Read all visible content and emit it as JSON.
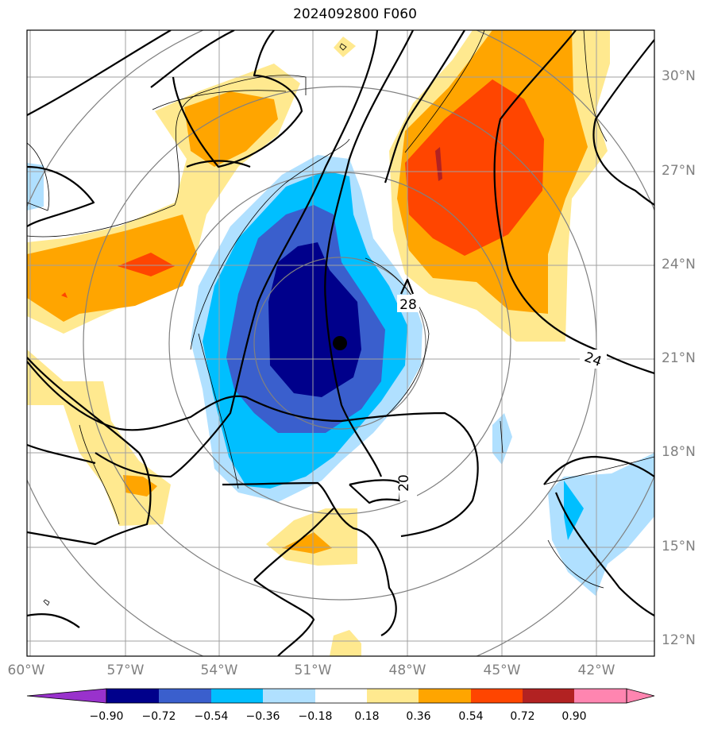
{
  "title": "2024092800 F060",
  "lon_labels": [
    "60°W",
    "57°W",
    "54°W",
    "51°W",
    "48°W",
    "45°W",
    "42°W"
  ],
  "lat_labels": [
    "30°N",
    "27°N",
    "24°N",
    "21°N",
    "18°N",
    "15°N",
    "12°N"
  ],
  "contour_labels": [
    "28",
    "24",
    "20"
  ],
  "colorbar": {
    "labels": [
      "−0.90",
      "−0.72",
      "−0.54",
      "−0.36",
      "−0.18",
      "0.18",
      "0.36",
      "0.54",
      "0.72",
      "0.90"
    ],
    "colors": [
      "#9932cc",
      "#00008b",
      "#3a5fcd",
      "#00bfff",
      "#b0e0ff",
      "#ffffff",
      "#ffe98f",
      "#ffa500",
      "#ff4500",
      "#b22222",
      "#ff85b0"
    ]
  },
  "colors": {
    "dark_blue": "#00008b",
    "blue": "#3a5fcd",
    "cyan": "#00bfff",
    "light_blue": "#b0e0ff",
    "light_yellow": "#ffe98f",
    "orange": "#ffa500",
    "red_orange": "#ff4500",
    "dark_red": "#b22222",
    "grid": "#a0a0a0"
  }
}
